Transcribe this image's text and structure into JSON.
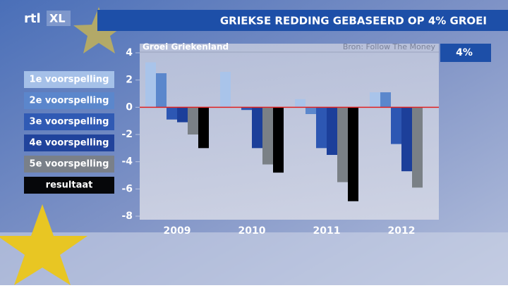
{
  "brand": "rtl",
  "brand_suffix": "XL",
  "chart_data": {
    "type": "bar",
    "title": "GRIEKSE REDDING GEBASEERD OP 4% GROEI",
    "subtitle": "Groei Griekenland",
    "source": "Bron: Follow The Money",
    "badge": "4%",
    "categories": [
      "2009",
      "2010",
      "2011",
      "2012"
    ],
    "series": [
      {
        "name": "1e voorspelling",
        "color": "#a9c4ea",
        "values": [
          3.3,
          2.6,
          0.6,
          1.1
        ]
      },
      {
        "name": "2e voorspelling",
        "color": "#5b87cc",
        "values": [
          2.5,
          0.0,
          -0.5,
          1.1
        ]
      },
      {
        "name": "3e voorspelling",
        "color": "#2d57b3",
        "values": [
          -0.9,
          -0.2,
          -3.0,
          -2.7
        ]
      },
      {
        "name": "4e voorspelling",
        "color": "#1c3f9a",
        "values": [
          -1.1,
          -3.0,
          -3.5,
          -4.7
        ]
      },
      {
        "name": "5e voorspelling",
        "color": "#7a8086",
        "values": [
          -2.0,
          -4.2,
          -5.5,
          -5.9
        ]
      },
      {
        "name": "resultaat",
        "color": "#000000",
        "values": [
          -3.0,
          -4.8,
          -6.9,
          null
        ]
      }
    ],
    "ylim": [
      -8,
      4
    ],
    "yticks": [
      4,
      2,
      0,
      -2,
      -4,
      -6,
      -8
    ],
    "zero_line_color": "#e02020"
  }
}
